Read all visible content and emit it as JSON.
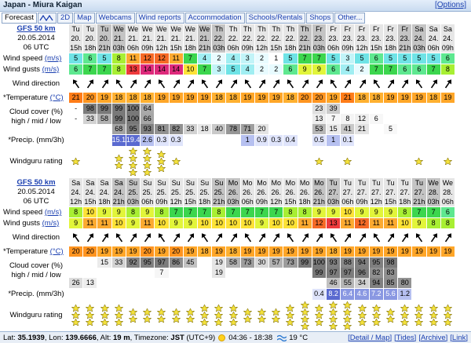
{
  "header": {
    "title": "Japan - Miura Kaigan",
    "options": "[Options]"
  },
  "tabs": [
    "Forecast",
    "2D",
    "Map",
    "Webcams",
    "Wind reports",
    "Accommodation",
    "Schools/Rentals",
    "Shops",
    "Other..."
  ],
  "row_labels": {
    "wind_speed": "Wind speed",
    "wind_gusts": "Wind gusts",
    "wind_unit": "(m/s)",
    "wind_direction": "Wind direction",
    "temperature": "*Temperature",
    "temp_unit": "(°C)",
    "cloud": "Cloud cover (%)",
    "cloud_levels": "high / mid / low",
    "precip": "*Precip. (mm/3h)",
    "rating": "Windguru rating"
  },
  "forecasts": [
    {
      "model": "GFS 50 km",
      "date": "20.05.2014",
      "run": "06 UTC",
      "days": [
        "Tu",
        "Tu",
        "Tu",
        "We",
        "We",
        "We",
        "We",
        "We",
        "We",
        "We",
        "Th",
        "Th",
        "Th",
        "Th",
        "Th",
        "Th",
        "Th",
        "Fr",
        "Fr",
        "Fr",
        "Fr",
        "Fr",
        "Fr",
        "Fr",
        "Sa",
        "Sa",
        "Sa"
      ],
      "dates": [
        "20.",
        "20.",
        "20.",
        "21.",
        "21.",
        "21.",
        "21.",
        "21.",
        "21.",
        "21.",
        "22.",
        "22.",
        "22.",
        "22.",
        "22.",
        "22.",
        "22.",
        "23.",
        "23.",
        "23.",
        "23.",
        "23.",
        "23.",
        "23.",
        "24.",
        "24.",
        "24."
      ],
      "hours": [
        "15h",
        "18h",
        "21h",
        "03h",
        "06h",
        "09h",
        "12h",
        "15h",
        "18h",
        "21h",
        "03h",
        "06h",
        "09h",
        "12h",
        "15h",
        "18h",
        "21h",
        "03h",
        "06h",
        "09h",
        "12h",
        "15h",
        "18h",
        "21h",
        "03h",
        "06h",
        "09h"
      ],
      "wind_speed": [
        5,
        6,
        5,
        8,
        11,
        12,
        12,
        11,
        7,
        4,
        2,
        4,
        3,
        2,
        1,
        5,
        7,
        7,
        5,
        3,
        5,
        6,
        5,
        5,
        5,
        5,
        6
      ],
      "wind_gusts": [
        6,
        7,
        7,
        8,
        13,
        14,
        14,
        14,
        10,
        7,
        3,
        5,
        4,
        2,
        2,
        6,
        9,
        9,
        6,
        4,
        2,
        7,
        7,
        6,
        6,
        7,
        8
      ],
      "temperature": [
        21,
        20,
        19,
        18,
        18,
        18,
        19,
        19,
        19,
        19,
        18,
        18,
        19,
        19,
        19,
        18,
        20,
        20,
        19,
        21,
        18,
        18,
        19,
        19,
        19,
        18,
        19
      ],
      "cloud_high": [
        "-",
        98,
        99,
        99,
        100,
        64,
        null,
        null,
        null,
        null,
        null,
        null,
        null,
        null,
        null,
        null,
        null,
        23,
        39,
        null,
        null,
        null,
        null,
        null,
        null,
        null,
        null
      ],
      "cloud_mid": [
        "-",
        33,
        58,
        99,
        100,
        66,
        null,
        null,
        null,
        null,
        null,
        null,
        null,
        null,
        null,
        null,
        null,
        13,
        7,
        8,
        12,
        6,
        null,
        null,
        null,
        null,
        null
      ],
      "cloud_low": [
        null,
        null,
        null,
        68,
        95,
        93,
        81,
        82,
        33,
        18,
        40,
        78,
        71,
        20,
        null,
        null,
        null,
        53,
        15,
        41,
        21,
        null,
        5,
        null,
        null,
        null,
        null
      ],
      "precip": [
        null,
        null,
        null,
        15.1,
        19.4,
        2.6,
        0.3,
        0.3,
        null,
        null,
        null,
        null,
        1,
        0.9,
        0.3,
        0.4,
        null,
        0.5,
        1,
        0.1,
        null,
        null,
        null,
        null,
        null,
        null,
        null
      ],
      "rating": [
        1,
        0,
        0,
        2,
        4,
        4,
        3,
        1,
        0,
        0,
        0,
        0,
        0,
        0,
        0,
        0,
        0,
        1,
        0,
        1,
        0,
        0,
        0,
        0,
        1,
        0,
        1
      ]
    },
    {
      "model": "GFS 50 km",
      "date": "20.05.2014",
      "run": "06 UTC",
      "days": [
        "Sa",
        "Sa",
        "Sa",
        "Sa",
        "Su",
        "Su",
        "Su",
        "Su",
        "Su",
        "Su",
        "Su",
        "Mo",
        "Mo",
        "Mo",
        "Mo",
        "Mo",
        "Mo",
        "Mo",
        "Tu",
        "Tu",
        "Tu",
        "Tu",
        "Tu",
        "Tu",
        "Tu",
        "We",
        "We"
      ],
      "dates": [
        "24.",
        "24.",
        "24.",
        "24.",
        "25.",
        "25.",
        "25.",
        "25.",
        "25.",
        "25.",
        "25.",
        "26.",
        "26.",
        "26.",
        "26.",
        "26.",
        "26.",
        "26.",
        "27.",
        "27.",
        "27.",
        "27.",
        "27.",
        "27.",
        "27.",
        "28.",
        "28."
      ],
      "hours": [
        "12h",
        "15h",
        "18h",
        "21h",
        "03h",
        "06h",
        "09h",
        "12h",
        "15h",
        "18h",
        "21h",
        "03h",
        "06h",
        "09h",
        "12h",
        "15h",
        "18h",
        "21h",
        "03h",
        "06h",
        "09h",
        "12h",
        "15h",
        "18h",
        "21h",
        "03h",
        "06h"
      ],
      "wind_speed": [
        8,
        10,
        9,
        9,
        8,
        9,
        8,
        7,
        7,
        7,
        8,
        7,
        7,
        7,
        7,
        8,
        8,
        9,
        9,
        10,
        9,
        9,
        9,
        8,
        7,
        7,
        6
      ],
      "wind_gusts": [
        9,
        11,
        11,
        10,
        9,
        11,
        10,
        9,
        9,
        10,
        10,
        10,
        10,
        9,
        10,
        10,
        11,
        12,
        13,
        11,
        12,
        11,
        11,
        10,
        9,
        8,
        8
      ],
      "temperature": [
        20,
        20,
        19,
        19,
        19,
        20,
        19,
        20,
        19,
        18,
        19,
        18,
        19,
        19,
        19,
        19,
        19,
        19,
        18,
        19,
        19,
        19,
        19,
        19,
        19,
        19,
        19
      ],
      "cloud_high": [
        null,
        null,
        15,
        33,
        92,
        95,
        97,
        86,
        45,
        null,
        19,
        58,
        73,
        30,
        57,
        73,
        99,
        100,
        93,
        88,
        94,
        95,
        98,
        null,
        null,
        null,
        null
      ],
      "cloud_mid": [
        null,
        null,
        null,
        null,
        null,
        null,
        7,
        null,
        null,
        null,
        19,
        null,
        null,
        null,
        null,
        null,
        null,
        99,
        97,
        97,
        96,
        82,
        83,
        null,
        null,
        null,
        null
      ],
      "cloud_low": [
        26,
        13,
        null,
        null,
        null,
        null,
        null,
        null,
        null,
        null,
        null,
        null,
        null,
        null,
        null,
        null,
        null,
        null,
        46,
        55,
        34,
        94,
        85,
        80,
        null,
        null,
        null
      ],
      "precip": [
        null,
        null,
        null,
        null,
        null,
        null,
        null,
        null,
        null,
        null,
        null,
        null,
        null,
        null,
        null,
        null,
        null,
        0.4,
        8.2,
        6.4,
        4.6,
        7.2,
        5.6,
        1.2,
        null,
        null,
        null
      ],
      "rating": [
        3,
        3,
        3,
        3,
        2,
        2,
        2,
        2,
        2,
        3,
        3,
        3,
        2,
        2,
        2,
        3,
        4,
        3,
        4,
        4,
        3,
        3,
        2,
        3,
        3,
        3,
        3
      ]
    }
  ],
  "footer": {
    "parts": [
      {
        "label": "Lat:",
        "value": "35.1939"
      },
      {
        "label": ", Lon:",
        "value": "139.6666"
      },
      {
        "label": ", Alt:",
        "value": "19 m"
      },
      {
        "label": ", Timezone:",
        "value": "JST"
      }
    ],
    "tz_offset": "(UTC+9)",
    "sun": "04:36 - 18:38",
    "water_temp": "19 °C",
    "links": [
      "[Detail / Map]",
      "[Tides]",
      "[Archive]",
      "[Link]"
    ]
  }
}
